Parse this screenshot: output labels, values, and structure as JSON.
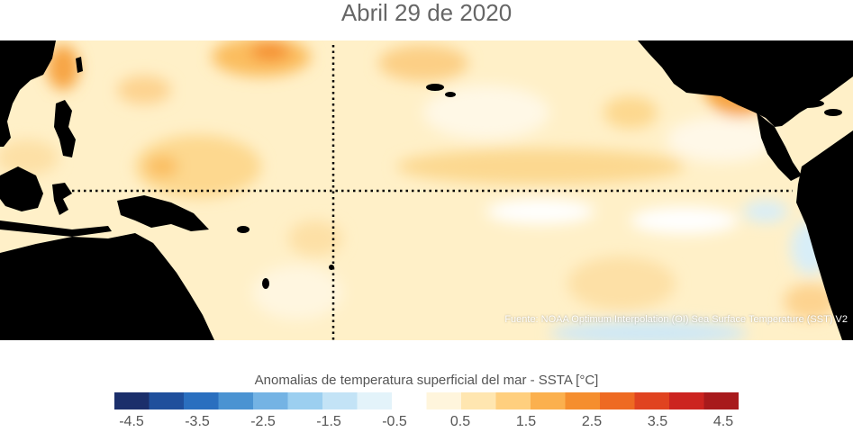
{
  "title": "Abril 29 de 2020",
  "source": "Fuente: NOAA Optimum Interpolation (OI) Sea Surface Temperature (SST) V2",
  "colorbar": {
    "label": "Anomalias de temperatura superficial del mar - SSTA  [°C]",
    "tick_labels": [
      "-4.5",
      "-3.5",
      "-2.5",
      "-1.5",
      "-0.5",
      "0.5",
      "1.5",
      "2.5",
      "3.5",
      "4.5"
    ],
    "colors": [
      "#1b2f6b",
      "#1f4f9c",
      "#2a6fbf",
      "#4a93d2",
      "#74b3e4",
      "#9ccff0",
      "#c3e3f6",
      "#e3f3fa",
      "#ffffff",
      "#fff5dc",
      "#ffe6b0",
      "#ffcf7e",
      "#fbb04e",
      "#f58e2e",
      "#ee6a22",
      "#e04320",
      "#cc2420",
      "#a81a1c"
    ]
  },
  "map": {
    "ocean_base": "#fff0c8",
    "land_color": "#000000",
    "reference_line": "dotted-black"
  }
}
